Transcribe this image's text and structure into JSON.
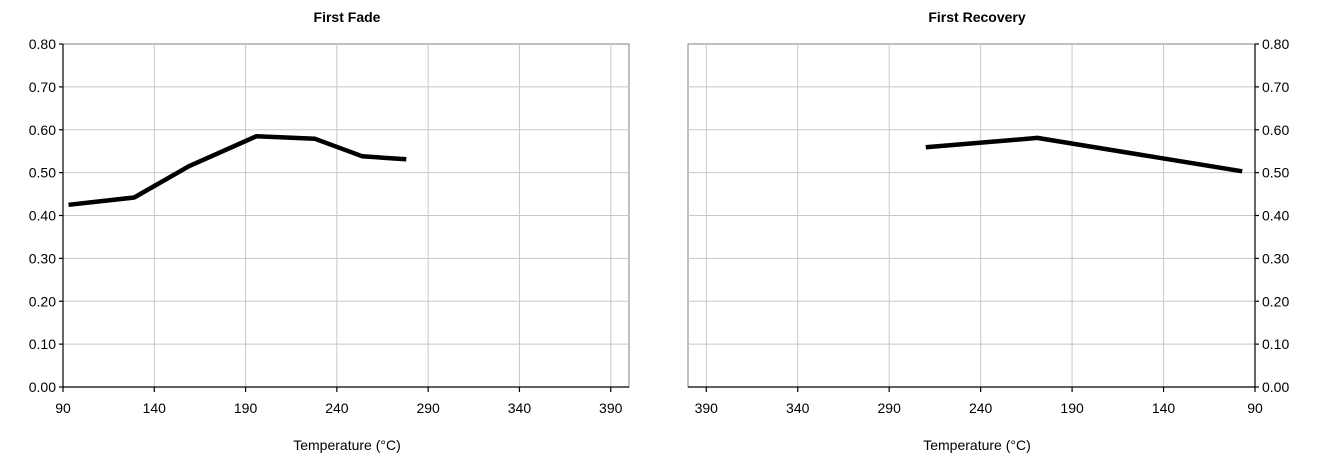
{
  "chart_data": [
    {
      "type": "line",
      "title": "First Fade",
      "xlabel": "Temperature (°C)",
      "ylabel": "",
      "xlim": [
        90,
        400
      ],
      "ylim": [
        0,
        0.8
      ],
      "x_ticks": [
        "90",
        "140",
        "190",
        "240",
        "290",
        "340",
        "390"
      ],
      "y_ticks": [
        "0.00",
        "0.10",
        "0.20",
        "0.30",
        "0.40",
        "0.50",
        "0.60",
        "0.70",
        "0.80"
      ],
      "x_reversed": false,
      "y_axis_side": "left",
      "grid": true,
      "series": [
        {
          "x": [
            93,
            129,
            159,
            196,
            228,
            254,
            278
          ],
          "y": [
            0.425,
            0.442,
            0.515,
            0.585,
            0.579,
            0.538,
            0.531
          ]
        }
      ]
    },
    {
      "type": "line",
      "title": "First Recovery",
      "xlabel": "Temperature (°C)",
      "ylabel": "",
      "xlim": [
        90,
        400
      ],
      "ylim": [
        0,
        0.8
      ],
      "x_ticks": [
        "390",
        "340",
        "290",
        "240",
        "190",
        "140",
        "90"
      ],
      "y_ticks": [
        "0.00",
        "0.10",
        "0.20",
        "0.30",
        "0.40",
        "0.50",
        "0.60",
        "0.70",
        "0.80"
      ],
      "x_reversed": true,
      "y_axis_side": "right",
      "grid": true,
      "series": [
        {
          "x": [
            270,
            209,
            97
          ],
          "y": [
            0.559,
            0.581,
            0.503
          ]
        }
      ]
    }
  ]
}
